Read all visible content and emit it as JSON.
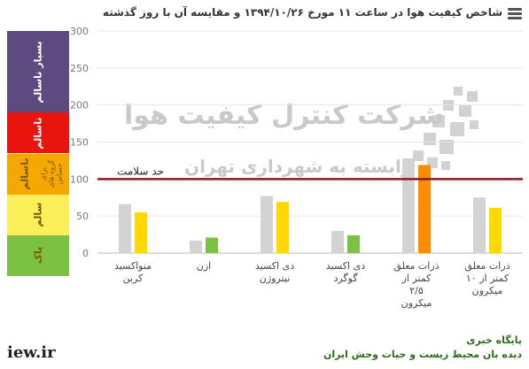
{
  "header": {
    "title": "شاخص کیفیت هوا در ساعت ۱۱ مورخ ۱۳۹۴/۱۰/۲۶ و مقایسه آن با روز گذشته"
  },
  "bands": [
    {
      "label": "بسیار ناسالم",
      "color": "#5d4b7f",
      "from": 200,
      "to": 300
    },
    {
      "label": "ناسالم",
      "color": "#e8140d",
      "from": 150,
      "to": 200
    },
    {
      "label": "ناسالم",
      "sublabel": "برای\nگروه های\nحساس",
      "color": "#f5a800",
      "from": 100,
      "to": 150
    },
    {
      "label": "سالم",
      "color": "#fbf05a",
      "from": 50,
      "to": 100
    },
    {
      "label": "پاک",
      "color": "#7cc242",
      "from": 0,
      "to": 50
    }
  ],
  "health_line": {
    "label": "حد سلامت",
    "value": 100,
    "color": "#8b1a1a"
  },
  "watermark": {
    "line1": "شرکت کنترل کیفیت هوا",
    "line2": "وابسته به شهرداری تهران"
  },
  "chart_data": {
    "type": "bar",
    "ylim": [
      0,
      300
    ],
    "yticks": [
      0,
      50,
      100,
      150,
      200,
      250,
      300
    ],
    "categories": [
      [
        "منواکسید",
        "کربن"
      ],
      [
        "ازن"
      ],
      [
        "دی اکسید",
        "نیتروژن"
      ],
      [
        "دی اکسید",
        "گوگرد"
      ],
      [
        "ذرات معلق",
        "کمتر از",
        "۲/۵",
        "میکرون"
      ],
      [
        "ذرات معلق",
        "کمتر از ۱۰",
        "میکرون"
      ]
    ],
    "series": [
      {
        "values": [
          66,
          17,
          77,
          30,
          128,
          75
        ],
        "color": "#d3d3d3"
      },
      {
        "values": [
          55,
          21,
          69,
          24,
          119,
          61
        ],
        "colors": [
          "#ffd800",
          "#7cc242",
          "#ffd800",
          "#7cc242",
          "#ff8c00",
          "#ffd800"
        ]
      }
    ],
    "grid": true
  },
  "footer": {
    "site": "iew.ir",
    "source_line1": "پایگاه خبری",
    "source_line2": "دیده بان محیط زیست و حیات وحش ایران"
  }
}
